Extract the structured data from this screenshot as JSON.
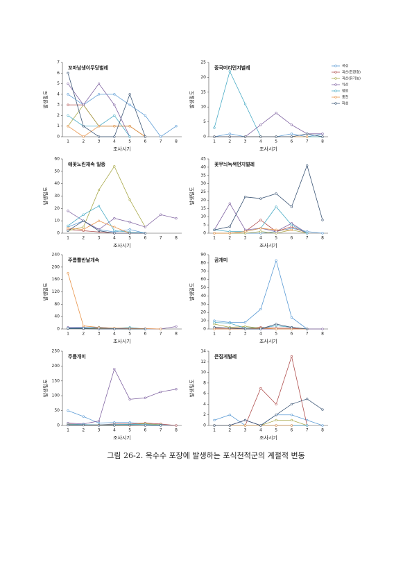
{
  "chart_data": [
    {
      "type": "line",
      "title": "꼬마남생이무당벌레",
      "xlabel": "조사시기",
      "ylabel": "발생밀도",
      "categories": [
        "1",
        "2",
        "3",
        "4",
        "5",
        "6",
        "7",
        "8"
      ],
      "ylim": [
        0,
        7
      ],
      "yticks": [
        0,
        1,
        2,
        3,
        4,
        5,
        6,
        7
      ],
      "series": [
        {
          "values": [
            4,
            3,
            4,
            4,
            3,
            2,
            0,
            1
          ]
        },
        {
          "values": [
            3,
            3,
            1,
            1,
            1,
            0,
            null,
            null
          ]
        },
        {
          "values": [
            1,
            3,
            1,
            1,
            1,
            0,
            null,
            null
          ]
        },
        {
          "values": [
            5,
            3,
            5,
            3,
            0,
            null,
            null,
            null
          ]
        },
        {
          "values": [
            2,
            1,
            1,
            2,
            0,
            null,
            null,
            null
          ]
        },
        {
          "values": [
            1,
            0,
            1,
            1,
            1,
            0,
            null,
            null
          ]
        },
        {
          "values": [
            6,
            1,
            0,
            0,
            4,
            0,
            null,
            null
          ]
        }
      ]
    },
    {
      "type": "line",
      "title": "중국머리먼지벌레",
      "xlabel": "조사시기",
      "ylabel": "발생밀도",
      "categories": [
        "1",
        "2",
        "3",
        "4",
        "5",
        "6",
        "7",
        "8"
      ],
      "ylim": [
        0,
        25
      ],
      "yticks": [
        0,
        5,
        10,
        15,
        20,
        25
      ],
      "series": [
        {
          "values": [
            0,
            1,
            0,
            0,
            0,
            1,
            0,
            1
          ]
        },
        {
          "values": [
            0,
            0,
            0,
            0,
            0,
            0,
            0,
            0
          ]
        },
        {
          "values": [
            0,
            0,
            0,
            0,
            0,
            0,
            0,
            0
          ]
        },
        {
          "values": [
            0,
            0,
            0,
            4,
            8,
            4,
            1,
            1
          ]
        },
        {
          "values": [
            3,
            22,
            11,
            0,
            0,
            0,
            0,
            0
          ]
        },
        {
          "values": [
            0,
            0,
            0,
            0,
            0,
            0,
            0,
            null
          ]
        },
        {
          "values": [
            0,
            0,
            0,
            0,
            0,
            0,
            1,
            0
          ]
        }
      ]
    },
    {
      "type": "line",
      "title": "애꽃노린재속 일종",
      "xlabel": "조사시기",
      "ylabel": "발생밀도",
      "categories": [
        "1",
        "2",
        "3",
        "4",
        "5",
        "6",
        "7",
        "8"
      ],
      "ylim": [
        0,
        60
      ],
      "yticks": [
        0,
        10,
        20,
        30,
        40,
        50,
        60
      ],
      "series": [
        {
          "values": [
            5,
            10,
            3,
            1,
            3,
            0,
            null,
            null
          ]
        },
        {
          "values": [
            3,
            2,
            1,
            0,
            0,
            0,
            null,
            null
          ]
        },
        {
          "values": [
            2,
            5,
            35,
            54,
            27,
            5,
            null,
            null
          ]
        },
        {
          "values": [
            18,
            10,
            3,
            12,
            9,
            5,
            15,
            12
          ]
        },
        {
          "values": [
            6,
            15,
            22,
            2,
            1,
            0,
            null,
            null
          ]
        },
        {
          "values": [
            4,
            3,
            10,
            5,
            0,
            null,
            null,
            null
          ]
        },
        {
          "values": [
            2,
            10,
            2,
            0,
            0,
            0,
            null,
            null
          ]
        }
      ]
    },
    {
      "type": "line",
      "title": "꽃무늬녹색먼지벌레",
      "xlabel": "조사시기",
      "ylabel": "발생밀도",
      "categories": [
        "1",
        "2",
        "3",
        "4",
        "5",
        "6",
        "7",
        "8"
      ],
      "ylim": [
        0,
        45
      ],
      "yticks": [
        0,
        5,
        10,
        15,
        20,
        25,
        30,
        35,
        40,
        45
      ],
      "series": [
        {
          "values": [
            0,
            0,
            0,
            0,
            1,
            3,
            1,
            0
          ]
        },
        {
          "values": [
            0,
            0,
            1,
            8,
            1,
            4,
            0,
            null
          ]
        },
        {
          "values": [
            0,
            0,
            0,
            1,
            0,
            2,
            0,
            null
          ]
        },
        {
          "values": [
            2,
            18,
            2,
            3,
            1,
            6,
            0,
            null
          ]
        },
        {
          "values": [
            2,
            1,
            1,
            3,
            16,
            5,
            0,
            null
          ]
        },
        {
          "values": [
            0,
            0,
            1,
            3,
            2,
            2,
            null,
            null
          ]
        },
        {
          "values": [
            2,
            4,
            22,
            21,
            24,
            16,
            41,
            8
          ]
        }
      ]
    },
    {
      "type": "line",
      "title": "주름뿔반날개속",
      "xlabel": "조사시기",
      "ylabel": "발생밀도",
      "categories": [
        "1",
        "2",
        "3",
        "4",
        "5",
        "6",
        "7",
        "8"
      ],
      "ylim": [
        0,
        240
      ],
      "yticks": [
        0,
        40,
        80,
        120,
        160,
        200,
        240
      ],
      "series": [
        {
          "values": [
            3,
            4,
            2,
            1,
            1,
            0,
            0,
            null
          ]
        },
        {
          "values": [
            2,
            1,
            1,
            1,
            0,
            0,
            null,
            null
          ]
        },
        {
          "values": [
            1,
            2,
            1,
            1,
            0,
            0,
            null,
            null
          ]
        },
        {
          "values": [
            5,
            5,
            3,
            2,
            1,
            1,
            0,
            8
          ]
        },
        {
          "values": [
            2,
            3,
            6,
            2,
            5,
            0,
            null,
            null
          ]
        },
        {
          "values": [
            180,
            10,
            5,
            3,
            2,
            1,
            0,
            null
          ]
        },
        {
          "values": [
            1,
            1,
            0,
            0,
            0,
            0,
            null,
            null
          ]
        }
      ]
    },
    {
      "type": "line",
      "title": "곰개미",
      "xlabel": "조사시기",
      "ylabel": "발생밀도",
      "categories": [
        "1",
        "2",
        "3",
        "4",
        "5",
        "6",
        "7",
        "8"
      ],
      "ylim": [
        0,
        90
      ],
      "yticks": [
        0,
        10,
        20,
        30,
        40,
        50,
        60,
        70,
        80,
        90
      ],
      "series": [
        {
          "values": [
            10,
            8,
            8,
            24,
            83,
            14,
            0,
            null
          ]
        },
        {
          "values": [
            1,
            1,
            1,
            2,
            1,
            1,
            0,
            null
          ]
        },
        {
          "values": [
            6,
            2,
            3,
            1,
            0,
            0,
            null,
            null
          ]
        },
        {
          "values": [
            0,
            0,
            0,
            0,
            0,
            0,
            0,
            0
          ]
        },
        {
          "values": [
            8,
            7,
            1,
            1,
            4,
            2,
            0,
            null
          ]
        },
        {
          "values": [
            0,
            0,
            0,
            1,
            0,
            0,
            0,
            null
          ]
        },
        {
          "values": [
            2,
            1,
            0,
            0,
            6,
            2,
            0,
            null
          ]
        }
      ]
    },
    {
      "type": "line",
      "title": "주름개미",
      "xlabel": "조사시기",
      "ylabel": "발생밀도",
      "categories": [
        "1",
        "2",
        "3",
        "4",
        "5",
        "6",
        "7",
        "8"
      ],
      "ylim": [
        0,
        250
      ],
      "yticks": [
        0,
        50,
        100,
        150,
        200,
        250
      ],
      "series": [
        {
          "values": [
            50,
            30,
            8,
            10,
            10,
            5,
            3,
            0
          ]
        },
        {
          "values": [
            5,
            3,
            2,
            5,
            5,
            8,
            5,
            0
          ]
        },
        {
          "values": [
            3,
            2,
            1,
            2,
            3,
            6,
            2,
            null
          ]
        },
        {
          "values": [
            8,
            5,
            15,
            190,
            88,
            93,
            113,
            122
          ]
        },
        {
          "values": [
            4,
            3,
            2,
            3,
            4,
            3,
            1,
            null
          ]
        },
        {
          "values": [
            2,
            1,
            1,
            0,
            0,
            0,
            null,
            null
          ]
        },
        {
          "values": [
            1,
            1,
            0,
            0,
            1,
            0,
            0,
            null
          ]
        }
      ]
    },
    {
      "type": "line",
      "title": "큰집게벌레",
      "xlabel": "조사시기",
      "ylabel": "발생밀도",
      "categories": [
        "1",
        "2",
        "3",
        "4",
        "5",
        "6",
        "7",
        "8"
      ],
      "ylim": [
        0,
        14
      ],
      "yticks": [
        0,
        2,
        4,
        6,
        8,
        10,
        12,
        14
      ],
      "series": [
        {
          "values": [
            1,
            2,
            0,
            0,
            2,
            2,
            1,
            0
          ]
        },
        {
          "values": [
            0,
            0,
            0,
            7,
            4,
            13,
            0,
            null
          ]
        },
        {
          "values": [
            0,
            0,
            0,
            0,
            1,
            1,
            0,
            null
          ]
        },
        {
          "values": [
            0,
            0,
            1,
            0,
            0,
            0,
            0,
            null
          ]
        },
        {
          "values": [
            0,
            0,
            0,
            0,
            0,
            0,
            0,
            null
          ]
        },
        {
          "values": [
            0,
            0,
            0,
            0,
            0,
            0,
            null,
            null
          ]
        },
        {
          "values": [
            0,
            0,
            1,
            0,
            2,
            4,
            5,
            3
          ]
        }
      ]
    }
  ],
  "legend": [
    {
      "name": "곡성",
      "color": "#5b9bd5"
    },
    {
      "name": "괴산(친환경)",
      "color": "#b0504f"
    },
    {
      "name": "괴산(유기농)",
      "color": "#a9a94a"
    },
    {
      "name": "익산",
      "color": "#8064a2"
    },
    {
      "name": "청원",
      "color": "#4bacc6"
    },
    {
      "name": "홍천",
      "color": "#e8944a"
    },
    {
      "name": "화성",
      "color": "#3b5575"
    }
  ],
  "caption": "그림 26-2. 옥수수 포장에 발생하는 포식천적군의 계절적 변동"
}
